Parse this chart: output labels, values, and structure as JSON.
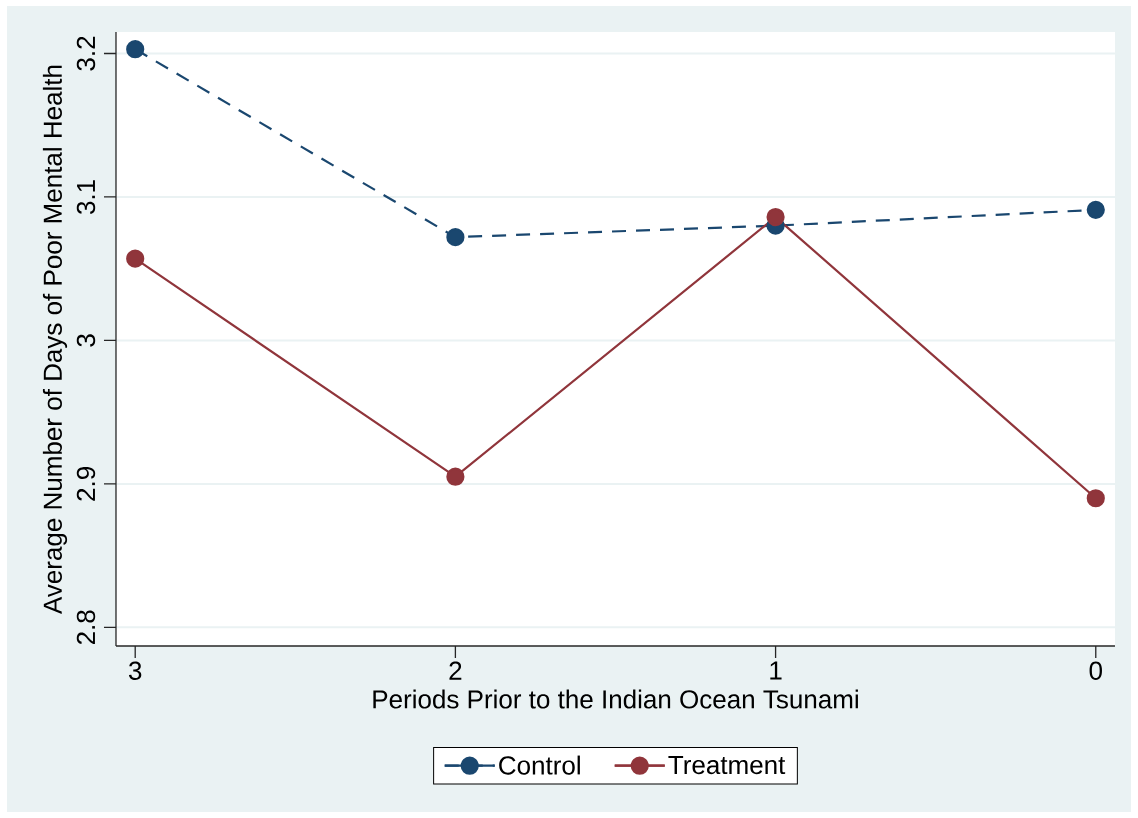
{
  "chart_data": {
    "type": "line",
    "xlabel": "Periods Prior to the Indian Ocean Tsunami",
    "ylabel": "Average Number of Days of Poor Mental Health",
    "x": [
      3,
      2,
      1,
      0
    ],
    "series": [
      {
        "name": "Control",
        "color": "#1a476f",
        "values": [
          3.203,
          3.072,
          3.08,
          3.091
        ],
        "line_style": "dashed"
      },
      {
        "name": "Treatment",
        "color": "#90353b",
        "values": [
          3.057,
          2.905,
          3.086,
          2.89
        ],
        "line_style": "solid"
      }
    ],
    "xlim": [
      3.06,
      -0.06
    ],
    "xticks": [
      3,
      2,
      1,
      0
    ],
    "ylim": [
      2.787,
      3.215
    ],
    "yticks": [
      2.8,
      2.9,
      3,
      3.1,
      3.2
    ],
    "grid": "y",
    "legend": "bottom",
    "marker": "circle"
  }
}
